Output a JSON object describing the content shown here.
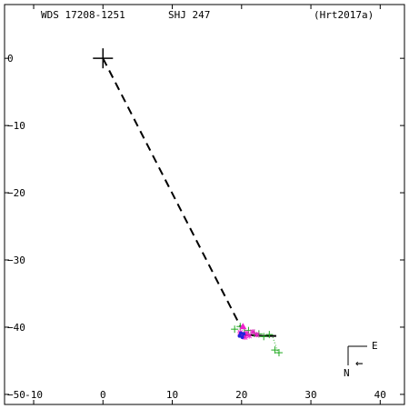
{
  "header": {
    "wds_id": "WDS 17208-1251",
    "discoverer": "SHJ 247",
    "reference": "(Hrt2017a)"
  },
  "compass": {
    "east_label": "E",
    "north_label": "N",
    "arrow_glyph": "←"
  },
  "chart_data": {
    "type": "scatter",
    "title": "",
    "xlabel": "",
    "ylabel": "",
    "xlim": [
      -14.2,
      43.5
    ],
    "ylim": [
      -51.5,
      8.0
    ],
    "x_ticks": [
      -10,
      0,
      10,
      20,
      30,
      40
    ],
    "y_ticks": [
      0,
      -10,
      -20,
      -30,
      -40,
      -50
    ],
    "grid": false,
    "primary": {
      "x": 0,
      "y": 0
    },
    "observed_separation": {
      "from": [
        0,
        0
      ],
      "to": [
        20,
        -40.2
      ],
      "style": "dashed"
    },
    "orbit_arc": [
      [
        20.0,
        -41.2
      ],
      [
        21.5,
        -41.2
      ],
      [
        23.0,
        -41.3
      ],
      [
        25.0,
        -41.3
      ]
    ],
    "series": [
      {
        "marker": "plus",
        "color": "#22aa22",
        "points": [
          [
            19.0,
            -40.3
          ],
          [
            19.8,
            -39.9
          ],
          [
            20.4,
            -40.8
          ],
          [
            21.0,
            -40.5
          ],
          [
            21.8,
            -40.9
          ],
          [
            22.5,
            -41.0
          ],
          [
            23.2,
            -41.4
          ],
          [
            24.0,
            -41.1
          ],
          [
            24.8,
            -43.4
          ],
          [
            25.4,
            -43.8
          ]
        ]
      },
      {
        "marker": "asterisk",
        "color": "#ee22cc",
        "points": [
          [
            19.8,
            -40.8
          ],
          [
            20.2,
            -41.2
          ],
          [
            20.7,
            -40.9
          ],
          [
            21.1,
            -41.3
          ],
          [
            21.6,
            -40.7
          ],
          [
            22.2,
            -41.1
          ],
          [
            20.5,
            -41.5
          ]
        ]
      },
      {
        "marker": "dot",
        "color": "#2222dd",
        "points": [
          [
            19.7,
            -41.3
          ],
          [
            19.9,
            -40.9
          ],
          [
            20.1,
            -41.5
          ],
          [
            20.3,
            -41.0
          ]
        ]
      },
      {
        "marker": "triangle",
        "color": "#ee22cc",
        "points": [
          [
            20.2,
            -39.9
          ]
        ]
      }
    ],
    "residual_lines": [
      [
        [
          24.5,
          -41.5
        ],
        [
          25.3,
          -43.9
        ]
      ]
    ]
  }
}
